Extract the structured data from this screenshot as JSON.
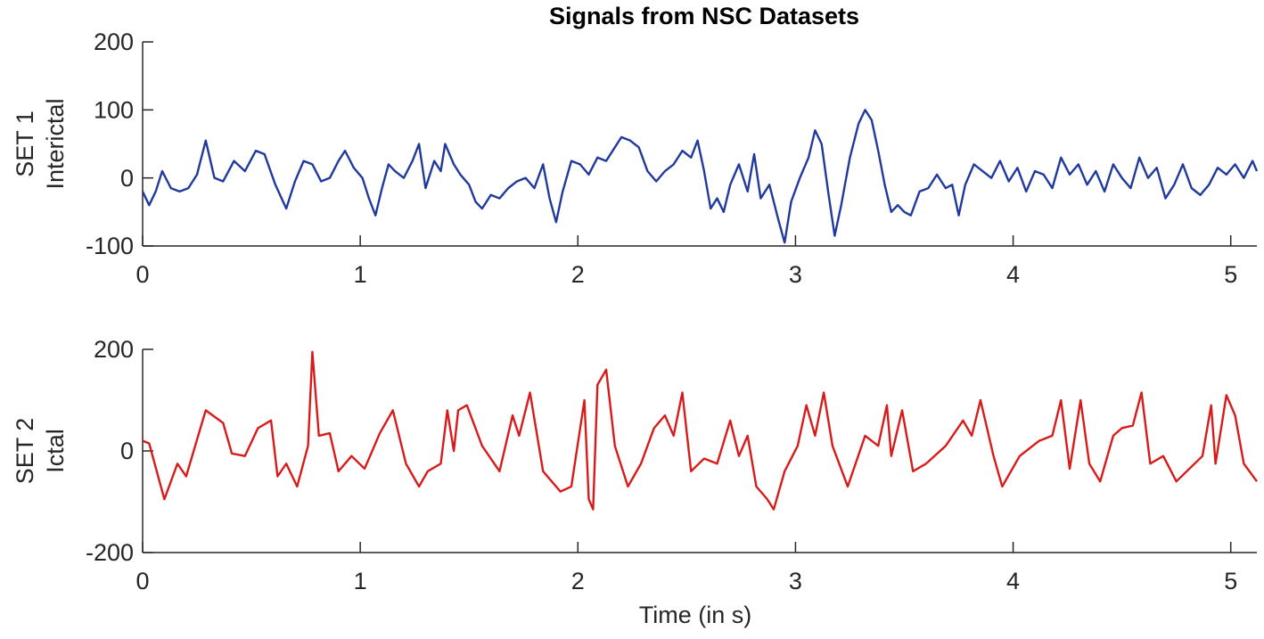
{
  "chart_data": [
    {
      "type": "line",
      "title": "Signals from NSC Datasets",
      "ylabel": [
        "SET 1",
        "Interictal"
      ],
      "color": "#1f3a9c",
      "xlim": [
        0,
        5.12
      ],
      "xticks": [
        0,
        1,
        2,
        3,
        4,
        5
      ],
      "ylim": [
        -100,
        200
      ],
      "yticks": [
        -100,
        0,
        100,
        200
      ],
      "x": [
        0,
        0.03,
        0.06,
        0.09,
        0.13,
        0.17,
        0.21,
        0.25,
        0.29,
        0.33,
        0.37,
        0.42,
        0.47,
        0.52,
        0.56,
        0.61,
        0.66,
        0.7,
        0.74,
        0.78,
        0.82,
        0.86,
        0.9,
        0.93,
        0.97,
        1.01,
        1.04,
        1.07,
        1.1,
        1.13,
        1.16,
        1.2,
        1.24,
        1.27,
        1.3,
        1.34,
        1.37,
        1.39,
        1.43,
        1.46,
        1.5,
        1.53,
        1.56,
        1.6,
        1.64,
        1.68,
        1.72,
        1.76,
        1.8,
        1.84,
        1.87,
        1.9,
        1.93,
        1.97,
        2.01,
        2.05,
        2.09,
        2.13,
        2.17,
        2.2,
        2.24,
        2.28,
        2.32,
        2.36,
        2.4,
        2.44,
        2.48,
        2.52,
        2.55,
        2.58,
        2.61,
        2.64,
        2.67,
        2.7,
        2.74,
        2.78,
        2.81,
        2.84,
        2.88,
        2.92,
        2.95,
        2.98,
        3.02,
        3.06,
        3.09,
        3.12,
        3.15,
        3.18,
        3.21,
        3.25,
        3.29,
        3.32,
        3.35,
        3.38,
        3.41,
        3.44,
        3.47,
        3.5,
        3.53,
        3.57,
        3.61,
        3.65,
        3.69,
        3.72,
        3.75,
        3.78,
        3.82,
        3.86,
        3.9,
        3.94,
        3.98,
        4.02,
        4.06,
        4.1,
        4.14,
        4.18,
        4.22,
        4.26,
        4.3,
        4.34,
        4.38,
        4.42,
        4.46,
        4.5,
        4.54,
        4.58,
        4.62,
        4.66,
        4.7,
        4.74,
        4.78,
        4.82,
        4.86,
        4.9,
        4.94,
        4.98,
        5.02,
        5.06,
        5.1,
        5.12
      ],
      "values": [
        -20,
        -40,
        -20,
        10,
        -15,
        -20,
        -15,
        5,
        55,
        0,
        -5,
        25,
        10,
        40,
        35,
        -10,
        -45,
        -5,
        25,
        20,
        -5,
        0,
        25,
        40,
        15,
        0,
        -30,
        -55,
        -15,
        20,
        10,
        0,
        25,
        50,
        -15,
        25,
        10,
        50,
        20,
        5,
        -10,
        -35,
        -45,
        -25,
        -30,
        -15,
        -5,
        0,
        -15,
        20,
        -30,
        -65,
        -20,
        25,
        20,
        5,
        30,
        25,
        45,
        60,
        55,
        45,
        10,
        -5,
        10,
        20,
        40,
        30,
        55,
        10,
        -45,
        -30,
        -50,
        -10,
        20,
        -20,
        35,
        -30,
        -10,
        -60,
        -95,
        -35,
        0,
        30,
        70,
        50,
        -20,
        -85,
        -40,
        30,
        80,
        100,
        85,
        40,
        -10,
        -50,
        -40,
        -50,
        -55,
        -20,
        -15,
        5,
        -15,
        -10,
        -55,
        -10,
        20,
        10,
        0,
        25,
        -5,
        15,
        -20,
        10,
        5,
        -15,
        30,
        5,
        20,
        -10,
        10,
        -20,
        20,
        0,
        -15,
        30,
        0,
        15,
        -30,
        -10,
        20,
        -15,
        -25,
        -10,
        15,
        5,
        20,
        0,
        25,
        10
      ]
    },
    {
      "type": "line",
      "ylabel": [
        "SET 2",
        "Ictal"
      ],
      "xlabel": "Time (in s)",
      "color": "#d91a1a",
      "xlim": [
        0,
        5.12
      ],
      "xticks": [
        0,
        1,
        2,
        3,
        4,
        5
      ],
      "ylim": [
        -200,
        200
      ],
      "yticks": [
        -200,
        0,
        200
      ],
      "x": [
        0,
        0.03,
        0.1,
        0.16,
        0.2,
        0.29,
        0.37,
        0.41,
        0.47,
        0.53,
        0.59,
        0.62,
        0.66,
        0.71,
        0.76,
        0.78,
        0.81,
        0.86,
        0.9,
        0.96,
        1.02,
        1.09,
        1.15,
        1.21,
        1.27,
        1.31,
        1.37,
        1.4,
        1.43,
        1.45,
        1.49,
        1.56,
        1.64,
        1.7,
        1.73,
        1.78,
        1.84,
        1.92,
        1.97,
        2.03,
        2.05,
        2.07,
        2.09,
        2.13,
        2.17,
        2.23,
        2.29,
        2.35,
        2.4,
        2.44,
        2.48,
        2.52,
        2.58,
        2.64,
        2.7,
        2.74,
        2.78,
        2.82,
        2.87,
        2.9,
        2.95,
        3.01,
        3.05,
        3.09,
        3.13,
        3.17,
        3.24,
        3.32,
        3.38,
        3.42,
        3.44,
        3.49,
        3.54,
        3.6,
        3.69,
        3.77,
        3.81,
        3.85,
        3.91,
        3.95,
        4.03,
        4.12,
        4.18,
        4.22,
        4.26,
        4.31,
        4.35,
        4.4,
        4.46,
        4.5,
        4.55,
        4.59,
        4.63,
        4.69,
        4.75,
        4.81,
        4.87,
        4.91,
        4.93,
        4.98,
        5.02,
        5.06,
        5.12
      ],
      "values": [
        20,
        15,
        -95,
        -25,
        -50,
        80,
        55,
        -5,
        -10,
        45,
        60,
        -50,
        -25,
        -70,
        10,
        195,
        30,
        35,
        -40,
        -10,
        -35,
        35,
        80,
        -25,
        -70,
        -40,
        -25,
        80,
        0,
        80,
        90,
        10,
        -40,
        70,
        30,
        115,
        -40,
        -80,
        -70,
        100,
        -95,
        -115,
        130,
        160,
        10,
        -70,
        -25,
        45,
        70,
        30,
        115,
        -40,
        -15,
        -25,
        60,
        -10,
        30,
        -70,
        -95,
        -115,
        -40,
        10,
        90,
        30,
        115,
        10,
        -70,
        30,
        10,
        90,
        -10,
        80,
        -40,
        -25,
        10,
        60,
        30,
        100,
        -10,
        -70,
        -10,
        20,
        30,
        100,
        -35,
        100,
        -25,
        -60,
        30,
        45,
        50,
        115,
        -25,
        -10,
        -60,
        -35,
        -10,
        90,
        -25,
        110,
        70,
        -25,
        -60
      ]
    }
  ]
}
